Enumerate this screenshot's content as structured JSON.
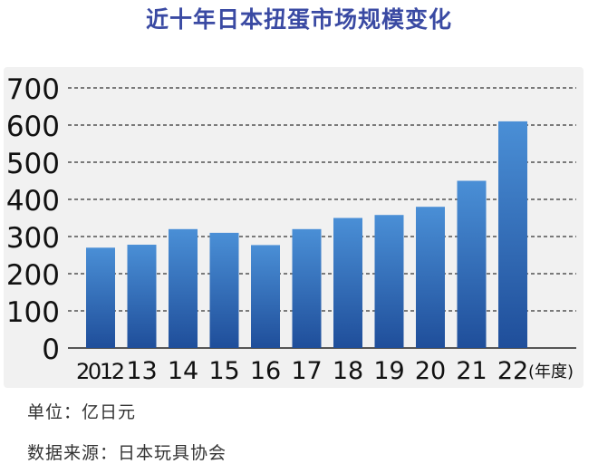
{
  "title": "近十年日本扭蛋市场规模变化",
  "footer": {
    "unit": "单位：亿日元",
    "source": "数据来源：日本玩具协会"
  },
  "colors": {
    "title": "#3a4aa3",
    "bar_top": "#4a8fd6",
    "bar_bottom": "#1f4e9a",
    "grid": "#333333",
    "panel": "#f1f1f1"
  },
  "chart_data": {
    "type": "bar",
    "categories": [
      "2012",
      "13",
      "14",
      "15",
      "16",
      "17",
      "18",
      "19",
      "20",
      "21",
      "22"
    ],
    "x_unit_label": "(年度)",
    "values": [
      270,
      278,
      320,
      310,
      277,
      320,
      350,
      358,
      380,
      450,
      610
    ],
    "ylim": [
      0,
      700
    ],
    "yticks": [
      0,
      100,
      200,
      300,
      400,
      500,
      600,
      700
    ],
    "grid": "dashed horizontal",
    "legend": "none"
  }
}
